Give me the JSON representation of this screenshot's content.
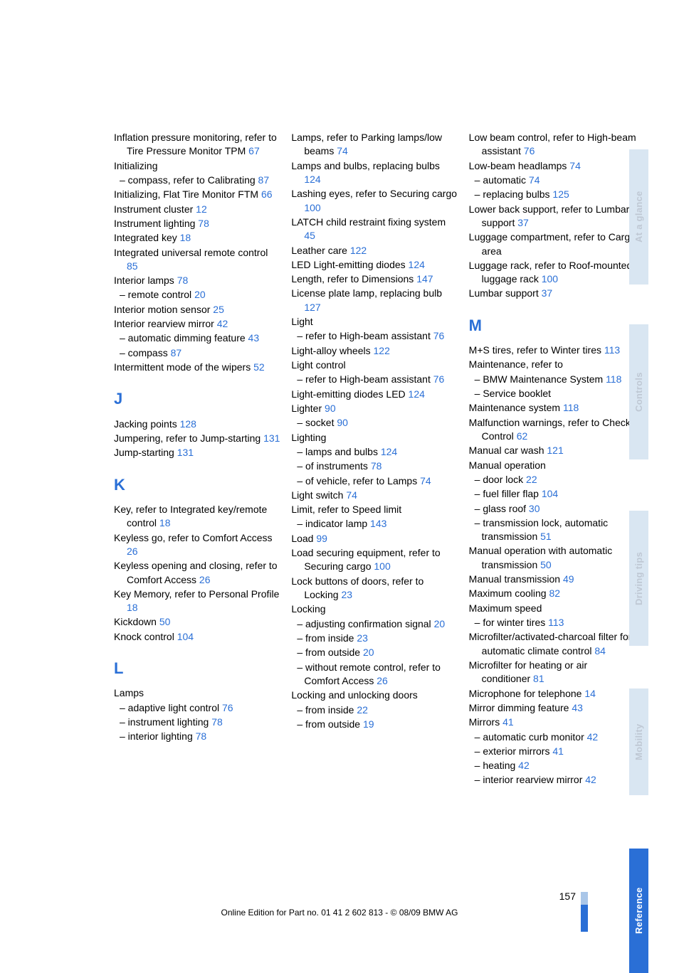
{
  "page_number": "157",
  "footer": "Online Edition for Part no. 01 41 2 602 813 - © 08/09 BMW AG",
  "tabs": [
    "At a glance",
    "Controls",
    "Driving tips",
    "Mobility",
    "Reference"
  ],
  "col1": [
    {
      "t": "Inflation pressure monitoring, refer to Tire Pressure Monitor TPM",
      "p": "67"
    },
    {
      "t": "Initializing"
    },
    {
      "t": "– compass, refer to Calibrating",
      "p": "87",
      "sub": true
    },
    {
      "t": "Initializing, Flat Tire Monitor FTM",
      "p": "66"
    },
    {
      "t": "Instrument cluster",
      "p": "12"
    },
    {
      "t": "Instrument lighting",
      "p": "78"
    },
    {
      "t": "Integrated key",
      "p": "18"
    },
    {
      "t": "Integrated universal remote control",
      "p": "85"
    },
    {
      "t": "Interior lamps",
      "p": "78"
    },
    {
      "t": "– remote control",
      "p": "20",
      "sub": true
    },
    {
      "t": "Interior motion sensor",
      "p": "25"
    },
    {
      "t": "Interior rearview mirror",
      "p": "42"
    },
    {
      "t": "– automatic dimming feature",
      "p": "43",
      "sub": true
    },
    {
      "t": "– compass",
      "p": "87",
      "sub": true
    },
    {
      "t": "Intermittent mode of the wipers",
      "p": "52"
    },
    {
      "letter": "J"
    },
    {
      "t": "Jacking points",
      "p": "128"
    },
    {
      "t": "Jumpering, refer to Jump-starting",
      "p": "131"
    },
    {
      "t": "Jump-starting",
      "p": "131"
    },
    {
      "letter": "K"
    },
    {
      "t": "Key, refer to Integrated key/remote control",
      "p": "18"
    },
    {
      "t": "Keyless go, refer to Comfort Access",
      "p": "26"
    },
    {
      "t": "Keyless opening and closing, refer to Comfort Access",
      "p": "26"
    },
    {
      "t": "Key Memory, refer to Personal Profile",
      "p": "18"
    },
    {
      "t": "Kickdown",
      "p": "50"
    },
    {
      "t": "Knock control",
      "p": "104"
    },
    {
      "letter": "L"
    },
    {
      "t": "Lamps"
    },
    {
      "t": "– adaptive light control",
      "p": "76",
      "sub": true
    },
    {
      "t": "– instrument lighting",
      "p": "78",
      "sub": true
    },
    {
      "t": "– interior lighting",
      "p": "78",
      "sub": true
    }
  ],
  "col2": [
    {
      "t": "Lamps, refer to Parking lamps/low beams",
      "p": "74"
    },
    {
      "t": "Lamps and bulbs, replacing bulbs",
      "p": "124"
    },
    {
      "t": "Lashing eyes, refer to Securing cargo",
      "p": "100"
    },
    {
      "t": "LATCH child restraint fixing system",
      "p": "45"
    },
    {
      "t": "Leather care",
      "p": "122"
    },
    {
      "t": "LED Light-emitting diodes",
      "p": "124"
    },
    {
      "t": "Length, refer to Dimensions",
      "p": "147"
    },
    {
      "t": "License plate lamp, replacing bulb",
      "p": "127"
    },
    {
      "t": "Light"
    },
    {
      "t": "– refer to High-beam assistant",
      "p": "76",
      "sub": true
    },
    {
      "t": "Light-alloy wheels",
      "p": "122"
    },
    {
      "t": "Light control"
    },
    {
      "t": "– refer to High-beam assistant",
      "p": "76",
      "sub": true
    },
    {
      "t": "Light-emitting diodes LED",
      "p": "124"
    },
    {
      "t": "Lighter",
      "p": "90"
    },
    {
      "t": "– socket",
      "p": "90",
      "sub": true
    },
    {
      "t": "Lighting"
    },
    {
      "t": "– lamps and bulbs",
      "p": "124",
      "sub": true
    },
    {
      "t": "– of instruments",
      "p": "78",
      "sub": true
    },
    {
      "t": "– of vehicle, refer to Lamps",
      "p": "74",
      "sub": true
    },
    {
      "t": "Light switch",
      "p": "74"
    },
    {
      "t": "Limit, refer to Speed limit"
    },
    {
      "t": "– indicator lamp",
      "p": "143",
      "sub": true
    },
    {
      "t": "Load",
      "p": "99"
    },
    {
      "t": "Load securing equipment, refer to Securing cargo",
      "p": "100"
    },
    {
      "t": "Lock buttons of doors, refer to Locking",
      "p": "23"
    },
    {
      "t": "Locking"
    },
    {
      "t": "– adjusting confirmation signal",
      "p": "20",
      "sub": true
    },
    {
      "t": "– from inside",
      "p": "23",
      "sub": true
    },
    {
      "t": "– from outside",
      "p": "20",
      "sub": true
    },
    {
      "t": "– without remote control, refer to Comfort Access",
      "p": "26",
      "sub": true
    },
    {
      "t": "Locking and unlocking doors"
    },
    {
      "t": "– from inside",
      "p": "22",
      "sub": true
    },
    {
      "t": "– from outside",
      "p": "19",
      "sub": true
    }
  ],
  "col3": [
    {
      "t": "Low beam control, refer to High-beam assistant",
      "p": "76"
    },
    {
      "t": "Low-beam headlamps",
      "p": "74"
    },
    {
      "t": "– automatic",
      "p": "74",
      "sub": true
    },
    {
      "t": "– replacing bulbs",
      "p": "125",
      "sub": true
    },
    {
      "t": "Lower back support, refer to Lumbar support",
      "p": "37"
    },
    {
      "t": "Luggage compartment, refer to Cargo area"
    },
    {
      "t": "Luggage rack, refer to Roof-mounted luggage rack",
      "p": "100"
    },
    {
      "t": "Lumbar support",
      "p": "37"
    },
    {
      "letter": "M"
    },
    {
      "t": "M+S tires, refer to Winter tires",
      "p": "113"
    },
    {
      "t": "Maintenance, refer to"
    },
    {
      "t": "– BMW Maintenance System",
      "p": "118",
      "sub": true
    },
    {
      "t": "– Service booklet",
      "sub": true
    },
    {
      "t": "Maintenance system",
      "p": "118"
    },
    {
      "t": "Malfunction warnings, refer to Check Control",
      "p": "62"
    },
    {
      "t": "Manual car wash",
      "p": "121"
    },
    {
      "t": "Manual operation"
    },
    {
      "t": "– door lock",
      "p": "22",
      "sub": true
    },
    {
      "t": "– fuel filler flap",
      "p": "104",
      "sub": true
    },
    {
      "t": "– glass roof",
      "p": "30",
      "sub": true
    },
    {
      "t": "– transmission lock, automatic transmission",
      "p": "51",
      "sub": true
    },
    {
      "t": "Manual operation with automatic transmission",
      "p": "50"
    },
    {
      "t": "Manual transmission",
      "p": "49"
    },
    {
      "t": "Maximum cooling",
      "p": "82"
    },
    {
      "t": "Maximum speed"
    },
    {
      "t": "– for winter tires",
      "p": "113",
      "sub": true
    },
    {
      "t": "Microfilter/activated-charcoal filter for automatic climate control",
      "p": "84"
    },
    {
      "t": "Microfilter for heating or air conditioner",
      "p": "81"
    },
    {
      "t": "Microphone for telephone",
      "p": "14"
    },
    {
      "t": "Mirror dimming feature",
      "p": "43"
    },
    {
      "t": "Mirrors",
      "p": "41"
    },
    {
      "t": "– automatic curb monitor",
      "p": "42",
      "sub": true
    },
    {
      "t": "– exterior mirrors",
      "p": "41",
      "sub": true
    },
    {
      "t": "– heating",
      "p": "42",
      "sub": true
    },
    {
      "t": "– interior rearview mirror",
      "p": "42",
      "sub": true
    }
  ]
}
